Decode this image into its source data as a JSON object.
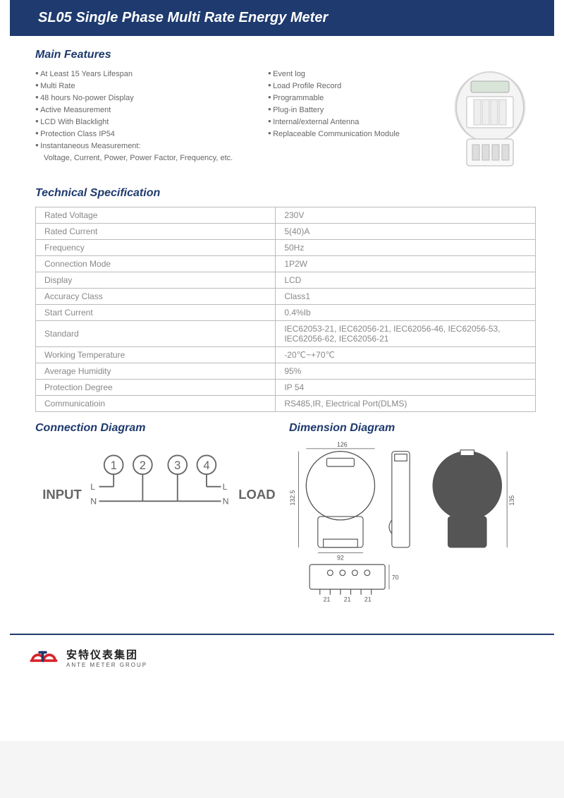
{
  "header": {
    "title": "SL05 Single Phase Multi Rate Energy Meter"
  },
  "features": {
    "title": "Main Features",
    "col1": [
      "At Least 15 Years Lifespan",
      "Multi Rate",
      "48 hours No-power Display",
      "Active Measurement",
      "LCD With Blacklight",
      "Protection Class IP54",
      "Instantaneous Measurement:"
    ],
    "col1_sub": "Voltage, Current, Power, Power Factor, Frequency, etc.",
    "col2": [
      "Event log",
      "Load Profile Record",
      "Programmable",
      "Plug-in Battery",
      "Internal/external Antenna",
      "Replaceable Communication Module"
    ]
  },
  "spec": {
    "title": "Technical Specification",
    "rows": [
      {
        "k": "Rated Voltage",
        "v": "230V"
      },
      {
        "k": "Rated Current",
        "v": "5(40)A"
      },
      {
        "k": "Frequency",
        "v": "50Hz"
      },
      {
        "k": "Connection Mode",
        "v": "1P2W"
      },
      {
        "k": "Display",
        "v": "LCD"
      },
      {
        "k": "Accuracy Class",
        "v": "Class1"
      },
      {
        "k": "Start Current",
        "v": "0.4%Ib"
      },
      {
        "k": "Standard",
        "v": "IEC62053-21, IEC62056-21, IEC62056-46, IEC62056-53, IEC62056-62, IEC62056-21"
      },
      {
        "k": "Working Temperature",
        "v": "-20℃~+70℃"
      },
      {
        "k": "Average Humidity",
        "v": "95%"
      },
      {
        "k": "Protection Degree",
        "v": "IP 54"
      },
      {
        "k": "Communicatioin",
        "v": "RS485,IR, Electrical Port(DLMS)"
      }
    ]
  },
  "connection": {
    "title": "Connection Diagram",
    "labels": {
      "input": "INPUT",
      "load": "LOAD",
      "L": "L",
      "N": "N",
      "t1": "1",
      "t2": "2",
      "t3": "3",
      "t4": "4"
    }
  },
  "dimension": {
    "title": "Dimension Diagram",
    "w_top": "126",
    "h_side": "132.5",
    "side_h": "135",
    "base_w": "92",
    "bottom_l": "21",
    "bottom_r": "21",
    "bottom_h": "70"
  },
  "footer": {
    "cn": "安特仪表集团",
    "en": "ANTE METER GROUP"
  },
  "colors": {
    "brand": "#1e3a6e",
    "logo": "#d8232a",
    "text": "#666",
    "border": "#bbb"
  }
}
